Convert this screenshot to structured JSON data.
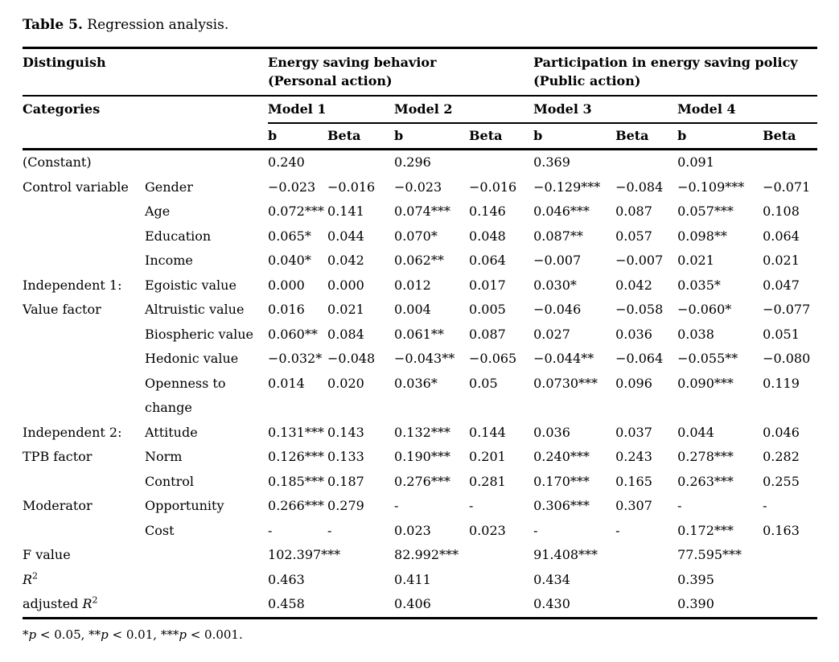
{
  "colors": {
    "text": "#000000",
    "background": "#ffffff",
    "rule": "#000000"
  },
  "title": {
    "bold": "Table 5.",
    "rest": " Regression analysis."
  },
  "table": {
    "header": {
      "distinguish": "Distinguish",
      "categories": "Categories",
      "groups": [
        {
          "line1": "Energy saving behavior",
          "line2": "(Personal action)"
        },
        {
          "line1": "Participation in energy saving policy",
          "line2": "(Public action)"
        }
      ],
      "models": [
        "Model 1",
        "Model 2",
        "Model 3",
        "Model 4"
      ],
      "coef_label": "b",
      "beta_label": "Beta"
    },
    "body": [
      {
        "label": "(Constant)",
        "values": [
          "0.240",
          "",
          "0.296",
          "",
          "0.369",
          "",
          "0.091",
          ""
        ]
      },
      {
        "group": "Control variable",
        "group_rowspan": 4,
        "variable": "Gender",
        "values": [
          "−0.023",
          "−0.016",
          "−0.023",
          "−0.016",
          "−0.129***",
          "−0.084",
          "−0.109***",
          "−0.071"
        ]
      },
      {
        "variable": "Age",
        "values": [
          "0.072***",
          "0.141",
          "0.074***",
          "0.146",
          "0.046***",
          "0.087",
          "0.057***",
          "0.108"
        ]
      },
      {
        "variable": "Education",
        "values": [
          "0.065*",
          "0.044",
          "0.070*",
          "0.048",
          "0.087**",
          "0.057",
          "0.098**",
          "0.064"
        ]
      },
      {
        "variable": "Income",
        "values": [
          "0.040*",
          "0.042",
          "0.062**",
          "0.064",
          "−0.007",
          "−0.007",
          "0.021",
          "0.021"
        ]
      },
      {
        "group": "Independent 1:\nValue factor",
        "group_rowspan": 5,
        "variable": "Egoistic value",
        "values": [
          "0.000",
          "0.000",
          "0.012",
          "0.017",
          "0.030*",
          "0.042",
          "0.035*",
          "0.047"
        ]
      },
      {
        "variable": "Altruistic value",
        "values": [
          "0.016",
          "0.021",
          "0.004",
          "0.005",
          "−0.046",
          "−0.058",
          "−0.060*",
          "−0.077"
        ]
      },
      {
        "variable": "Biospheric value",
        "values": [
          "0.060**",
          "0.084",
          "0.061**",
          "0.087",
          "0.027",
          "0.036",
          "0.038",
          "0.051"
        ]
      },
      {
        "variable": "Hedonic value",
        "values": [
          "−0.032*",
          "−0.048",
          "−0.043**",
          "−0.065",
          "−0.044**",
          "−0.064",
          "−0.055**",
          "−0.080"
        ]
      },
      {
        "variable": "Openness to\nchange",
        "values": [
          "0.014",
          "0.020",
          "0.036*",
          "0.05",
          "0.0730***",
          "0.096",
          "0.090***",
          "0.119"
        ]
      },
      {
        "group": "Independent 2:\nTPB factor",
        "group_rowspan": 3,
        "variable": "Attitude",
        "values": [
          "0.131***",
          "0.143",
          "0.132***",
          "0.144",
          "0.036",
          "0.037",
          "0.044",
          "0.046"
        ]
      },
      {
        "variable": "Norm",
        "values": [
          "0.126***",
          "0.133",
          "0.190***",
          "0.201",
          "0.240***",
          "0.243",
          "0.278***",
          "0.282"
        ]
      },
      {
        "variable": "Control",
        "values": [
          "0.185***",
          "0.187",
          "0.276***",
          "0.281",
          "0.170***",
          "0.165",
          "0.263***",
          "0.255"
        ]
      },
      {
        "group": "Moderator",
        "group_rowspan": 2,
        "variable": "Opportunity",
        "values": [
          "0.266***",
          "0.279",
          "-",
          "-",
          "0.306***",
          "0.307",
          "-",
          "-"
        ]
      },
      {
        "variable": "Cost",
        "values": [
          "-",
          "-",
          "0.023",
          "0.023",
          "-",
          "-",
          "0.172***",
          "0.163"
        ]
      }
    ],
    "stats": [
      {
        "prefix": "F value",
        "italic": "",
        "sup": "",
        "values": [
          "102.397***",
          "82.992***",
          "91.408***",
          "77.595***"
        ]
      },
      {
        "prefix": "",
        "italic": "R",
        "sup": "2",
        "values": [
          "0.463",
          "0.411",
          "0.434",
          "0.395"
        ]
      },
      {
        "prefix": "adjusted ",
        "italic": "R",
        "sup": "2",
        "values": [
          "0.458",
          "0.406",
          "0.430",
          "0.390"
        ]
      }
    ],
    "footnote_segments": [
      {
        "t": "*",
        "i": false
      },
      {
        "t": "p",
        "i": true
      },
      {
        "t": " < 0.05, ",
        "i": false
      },
      {
        "t": "**",
        "i": false
      },
      {
        "t": "p",
        "i": true
      },
      {
        "t": " < 0.01, ",
        "i": false
      },
      {
        "t": "***",
        "i": false
      },
      {
        "t": "p",
        "i": true
      },
      {
        "t": " < 0.001.",
        "i": false
      }
    ]
  }
}
